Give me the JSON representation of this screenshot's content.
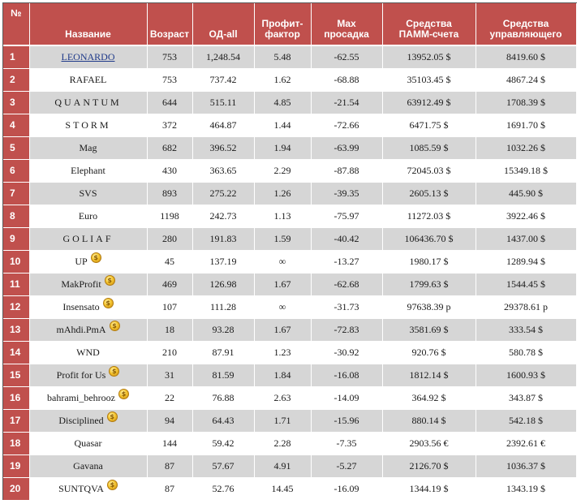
{
  "header": {
    "num": "№",
    "name": "Название",
    "age": "Возраст",
    "od": "ОД-all",
    "pf_line1": "Профит-",
    "pf_line2": "фактор",
    "dd_line1": "Max",
    "dd_line2": "просадка",
    "pamm_line1": "Средства",
    "pamm_line2": "ПАММ-счета",
    "mgr_line1": "Средства",
    "mgr_line2": "управляющего"
  },
  "rows": [
    {
      "num": "1",
      "name": "LEONARDO",
      "age": "753",
      "od": "1,248.54",
      "pf": "5.48",
      "dd": "-62.55",
      "pamm": "13952.05 $",
      "mgr": "8419.60 $"
    },
    {
      "num": "2",
      "name": "RAFAEL",
      "age": "753",
      "od": "737.42",
      "pf": "1.62",
      "dd": "-68.88",
      "pamm": "35103.45 $",
      "mgr": "4867.24 $"
    },
    {
      "num": "3",
      "name": "QUANTUM",
      "age": "644",
      "od": "515.11",
      "pf": "4.85",
      "dd": "-21.54",
      "pamm": "63912.49 $",
      "mgr": "1708.39 $"
    },
    {
      "num": "4",
      "name": "STORM",
      "age": "372",
      "od": "464.87",
      "pf": "1.44",
      "dd": "-72.66",
      "pamm": "6471.75 $",
      "mgr": "1691.70 $"
    },
    {
      "num": "5",
      "name": "Mag",
      "age": "682",
      "od": "396.52",
      "pf": "1.94",
      "dd": "-63.99",
      "pamm": "1085.59 $",
      "mgr": "1032.26 $"
    },
    {
      "num": "6",
      "name": "Elephant",
      "age": "430",
      "od": "363.65",
      "pf": "2.29",
      "dd": "-87.88",
      "pamm": "72045.03 $",
      "mgr": "15349.18 $"
    },
    {
      "num": "7",
      "name": "SVS",
      "age": "893",
      "od": "275.22",
      "pf": "1.26",
      "dd": "-39.35",
      "pamm": "2605.13 $",
      "mgr": "445.90 $"
    },
    {
      "num": "8",
      "name": "Euro",
      "age": "1198",
      "od": "242.73",
      "pf": "1.13",
      "dd": "-75.97",
      "pamm": "11272.03 $",
      "mgr": "3922.46 $"
    },
    {
      "num": "9",
      "name": "GOLIAF",
      "age": "280",
      "od": "191.83",
      "pf": "1.59",
      "dd": "-40.42",
      "pamm": "106436.70 $",
      "mgr": "1437.00 $"
    },
    {
      "num": "10",
      "name": "UP",
      "age": "45",
      "od": "137.19",
      "pf": "∞",
      "dd": "-13.27",
      "pamm": "1980.17 $",
      "mgr": "1289.94 $"
    },
    {
      "num": "11",
      "name": "MakProfit",
      "age": "469",
      "od": "126.98",
      "pf": "1.67",
      "dd": "-62.68",
      "pamm": "1799.63 $",
      "mgr": "1544.45 $"
    },
    {
      "num": "12",
      "name": "Insensato",
      "age": "107",
      "od": "111.28",
      "pf": "∞",
      "dd": "-31.73",
      "pamm": "97638.39 р",
      "mgr": "29378.61 р"
    },
    {
      "num": "13",
      "name": "mAhdi.PmA",
      "age": "18",
      "od": "93.28",
      "pf": "1.67",
      "dd": "-72.83",
      "pamm": "3581.69 $",
      "mgr": "333.54 $"
    },
    {
      "num": "14",
      "name": "WND",
      "age": "210",
      "od": "87.91",
      "pf": "1.23",
      "dd": "-30.92",
      "pamm": "920.76 $",
      "mgr": "580.78 $"
    },
    {
      "num": "15",
      "name": "Profit for Us",
      "age": "31",
      "od": "81.59",
      "pf": "1.84",
      "dd": "-16.08",
      "pamm": "1812.14 $",
      "mgr": "1600.93 $"
    },
    {
      "num": "16",
      "name": "bahrami_behrooz",
      "age": "22",
      "od": "76.88",
      "pf": "2.63",
      "dd": "-14.09",
      "pamm": "364.92 $",
      "mgr": "343.87 $"
    },
    {
      "num": "17",
      "name": "Disciplined",
      "age": "94",
      "od": "64.43",
      "pf": "1.71",
      "dd": "-15.96",
      "pamm": "880.14 $",
      "mgr": "542.18 $"
    },
    {
      "num": "18",
      "name": "Quasar",
      "age": "144",
      "od": "59.42",
      "pf": "2.28",
      "dd": "-7.35",
      "pamm": "2903.56 €",
      "mgr": "2392.61 €"
    },
    {
      "num": "19",
      "name": "Gavana",
      "age": "87",
      "od": "57.67",
      "pf": "4.91",
      "dd": "-5.27",
      "pamm": "2126.70 $",
      "mgr": "1036.37 $"
    },
    {
      "num": "20",
      "name": "SUNTQVA",
      "age": "87",
      "od": "52.76",
      "pf": "14.45",
      "dd": "-16.09",
      "pamm": "1344.19 $",
      "mgr": "1343.19 $"
    }
  ],
  "icons": {
    "coin": "gold-coin-icon",
    "coin_glyph": "$"
  },
  "colors": {
    "header_bg": "#c0504d",
    "row_alt": "#d6d6d6",
    "link": "#1f3a8a"
  }
}
